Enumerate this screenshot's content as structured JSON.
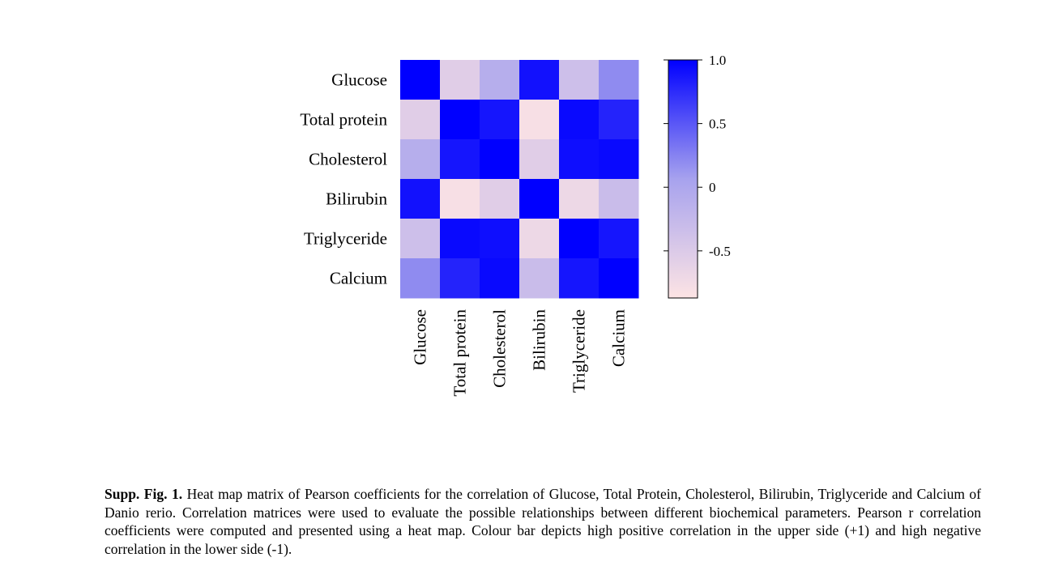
{
  "chart_data": {
    "type": "heatmap",
    "rows": [
      "Glucose",
      "Total protein",
      "Cholesterol",
      "Bilirubin",
      "Triglyceride",
      "Calcium"
    ],
    "columns": [
      "Glucose",
      "Total protein",
      "Cholesterol",
      "Bilirubin",
      "Triglyceride",
      "Calcium"
    ],
    "values": [
      [
        1.0,
        -0.55,
        -0.1,
        0.9,
        -0.35,
        0.2
      ],
      [
        -0.55,
        1.0,
        0.88,
        -0.8,
        0.95,
        0.8
      ],
      [
        -0.1,
        0.88,
        1.0,
        -0.55,
        0.92,
        0.95
      ],
      [
        0.9,
        -0.8,
        -0.55,
        1.0,
        -0.7,
        -0.3
      ],
      [
        -0.35,
        0.95,
        0.92,
        -0.7,
        1.0,
        0.88
      ],
      [
        0.2,
        0.8,
        0.95,
        -0.3,
        0.88,
        1.0
      ]
    ],
    "colorbar": {
      "range": [
        -0.87,
        1.0
      ],
      "ticks": [
        1.0,
        0.5,
        0,
        -0.5
      ],
      "tick_labels": [
        "1.0",
        "0.5",
        "0",
        "-0.5"
      ],
      "color_high": "#0000ff",
      "color_mid": "#a7a2ee",
      "color_low": "#fde4e4"
    }
  },
  "caption": {
    "label": "Supp. Fig. 1.",
    "text": " Heat map matrix of Pearson coefficients for the correlation of Glucose, Total Protein, Cholesterol, Bilirubin, Triglyceride and Calcium of Danio rerio. Correlation matrices were used to evaluate the possible relationships between different biochemical parameters. Pearson r correlation coefficients were computed and presented using a heat map. Colour bar depicts high positive correlation in the upper side (+1) and high negative correlation in the lower side (-1)."
  }
}
